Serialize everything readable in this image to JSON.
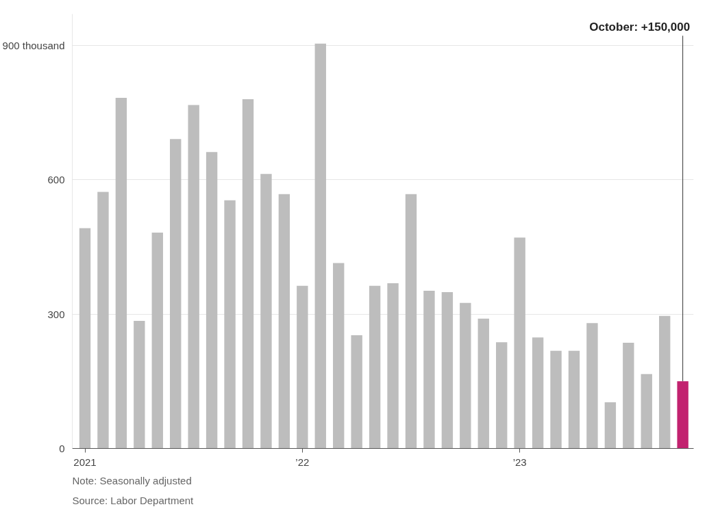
{
  "chart_data": {
    "type": "bar",
    "categories": [
      "2021",
      null,
      null,
      null,
      null,
      null,
      null,
      null,
      null,
      null,
      null,
      null,
      "’22",
      null,
      null,
      null,
      null,
      null,
      null,
      null,
      null,
      null,
      null,
      null,
      "’23",
      null,
      null,
      null,
      null,
      null,
      null,
      null,
      null,
      null
    ],
    "values": [
      492,
      573,
      783,
      285,
      482,
      691,
      767,
      662,
      554,
      780,
      613,
      568,
      363,
      904,
      414,
      253,
      363,
      369,
      568,
      352,
      349,
      325,
      290,
      237,
      471,
      248,
      218,
      218,
      280,
      103,
      236,
      166,
      296,
      150
    ],
    "colors": [
      "#bdbdbd",
      "#bdbdbd",
      "#bdbdbd",
      "#bdbdbd",
      "#bdbdbd",
      "#bdbdbd",
      "#bdbdbd",
      "#bdbdbd",
      "#bdbdbd",
      "#bdbdbd",
      "#bdbdbd",
      "#bdbdbd",
      "#bdbdbd",
      "#bdbdbd",
      "#bdbdbd",
      "#bdbdbd",
      "#bdbdbd",
      "#bdbdbd",
      "#bdbdbd",
      "#bdbdbd",
      "#bdbdbd",
      "#bdbdbd",
      "#bdbdbd",
      "#bdbdbd",
      "#bdbdbd",
      "#bdbdbd",
      "#bdbdbd",
      "#bdbdbd",
      "#bdbdbd",
      "#bdbdbd",
      "#bdbdbd",
      "#bdbdbd",
      "#bdbdbd",
      "#c2226f"
    ],
    "ylim": [
      0,
      970
    ],
    "yticks": [
      0,
      300,
      600,
      {
        "value": 900,
        "label": "900 thousand"
      }
    ],
    "grid": "y",
    "annotations": [
      "October: +150,000",
      "Note: Seasonally adjusted",
      "Source: Labor Department"
    ]
  }
}
